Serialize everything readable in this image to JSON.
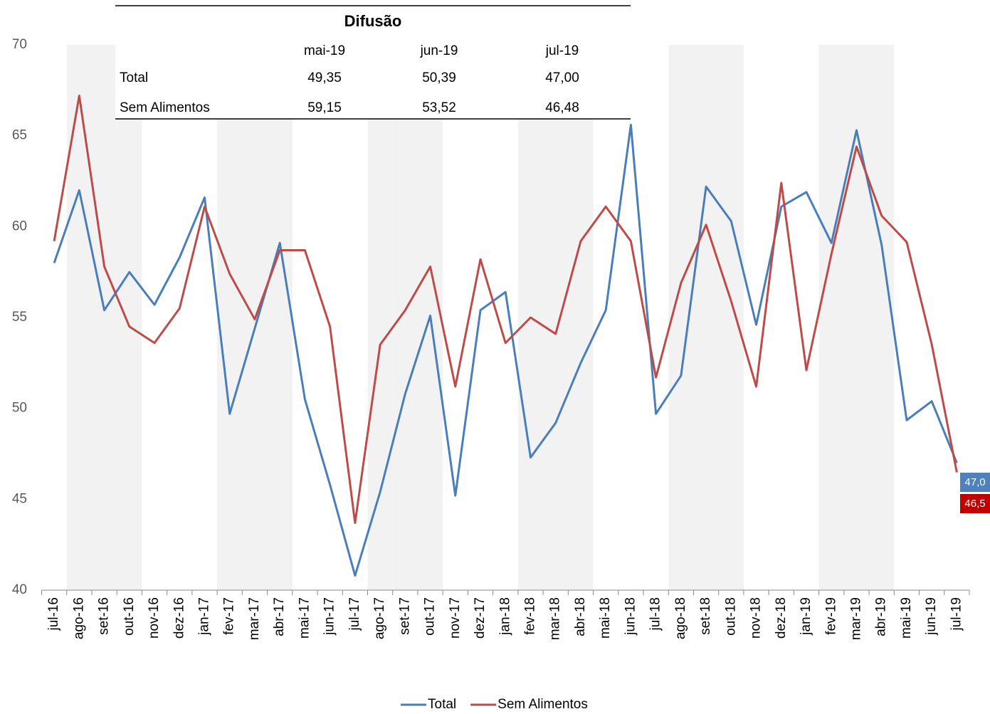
{
  "chart_data": {
    "type": "line",
    "table": {
      "title": "Difusão",
      "columns": [
        "mai-19",
        "jun-19",
        "jul-19"
      ],
      "rows": [
        {
          "label": "Total",
          "cells": [
            "49,35",
            "50,39",
            "47,00"
          ]
        },
        {
          "label": "Sem Alimentos",
          "cells": [
            "59,15",
            "53,52",
            "46,48"
          ]
        }
      ]
    },
    "categories": [
      "jul-16",
      "ago-16",
      "set-16",
      "out-16",
      "nov-16",
      "dez-16",
      "jan-17",
      "fev-17",
      "mar-17",
      "abr-17",
      "mai-17",
      "jun-17",
      "jul-17",
      "ago-17",
      "set-17",
      "out-17",
      "nov-17",
      "dez-17",
      "jan-18",
      "fev-18",
      "mar-18",
      "abr-18",
      "mai-18",
      "jun-18",
      "jul-18",
      "ago-18",
      "set-18",
      "out-18",
      "nov-18",
      "dez-18",
      "jan-19",
      "fev-19",
      "mar-19",
      "abr-19",
      "mai-19",
      "jun-19",
      "jul-19"
    ],
    "series": [
      {
        "name": "Total",
        "color": "#4a7ebb",
        "label_color": "#4f81bd",
        "values": [
          58.0,
          62.0,
          55.4,
          57.5,
          55.7,
          58.3,
          61.6,
          49.7,
          54.4,
          59.1,
          50.5,
          45.8,
          40.8,
          45.4,
          50.8,
          55.1,
          45.2,
          55.4,
          56.4,
          47.3,
          49.2,
          52.5,
          55.4,
          65.6,
          49.7,
          51.8,
          62.2,
          60.3,
          54.6,
          61.1,
          61.9,
          59.1,
          65.3,
          59.0,
          49.35,
          50.39,
          47.0
        ],
        "value_labels": [
          null,
          null,
          null,
          null,
          null,
          null,
          null,
          null,
          null,
          null,
          null,
          null,
          null,
          null,
          null,
          null,
          null,
          null,
          null,
          null,
          null,
          null,
          null,
          null,
          null,
          null,
          null,
          null,
          null,
          null,
          null,
          null,
          null,
          null,
          null,
          null,
          "47,0"
        ]
      },
      {
        "name": "Sem Alimentos",
        "color": "#be4b48",
        "label_color": "#c00000",
        "values": [
          59.2,
          67.2,
          57.8,
          54.5,
          53.6,
          55.5,
          61.1,
          57.4,
          54.9,
          58.7,
          58.7,
          54.5,
          43.7,
          53.5,
          55.4,
          57.8,
          51.2,
          58.2,
          53.6,
          55.0,
          54.1,
          59.2,
          61.1,
          59.2,
          51.7,
          56.9,
          60.1,
          55.9,
          51.2,
          62.4,
          52.1,
          58.5,
          64.4,
          60.6,
          59.15,
          53.52,
          46.48
        ],
        "value_labels": [
          null,
          null,
          null,
          null,
          null,
          null,
          null,
          null,
          null,
          null,
          null,
          null,
          null,
          null,
          null,
          null,
          null,
          null,
          null,
          null,
          null,
          null,
          null,
          null,
          null,
          null,
          null,
          null,
          null,
          null,
          null,
          null,
          null,
          null,
          null,
          null,
          "46,5"
        ]
      }
    ],
    "ylim": [
      40,
      70
    ],
    "yticks": [
      40,
      45,
      50,
      55,
      60,
      65,
      70
    ],
    "grid": false,
    "legend": "bottom"
  }
}
